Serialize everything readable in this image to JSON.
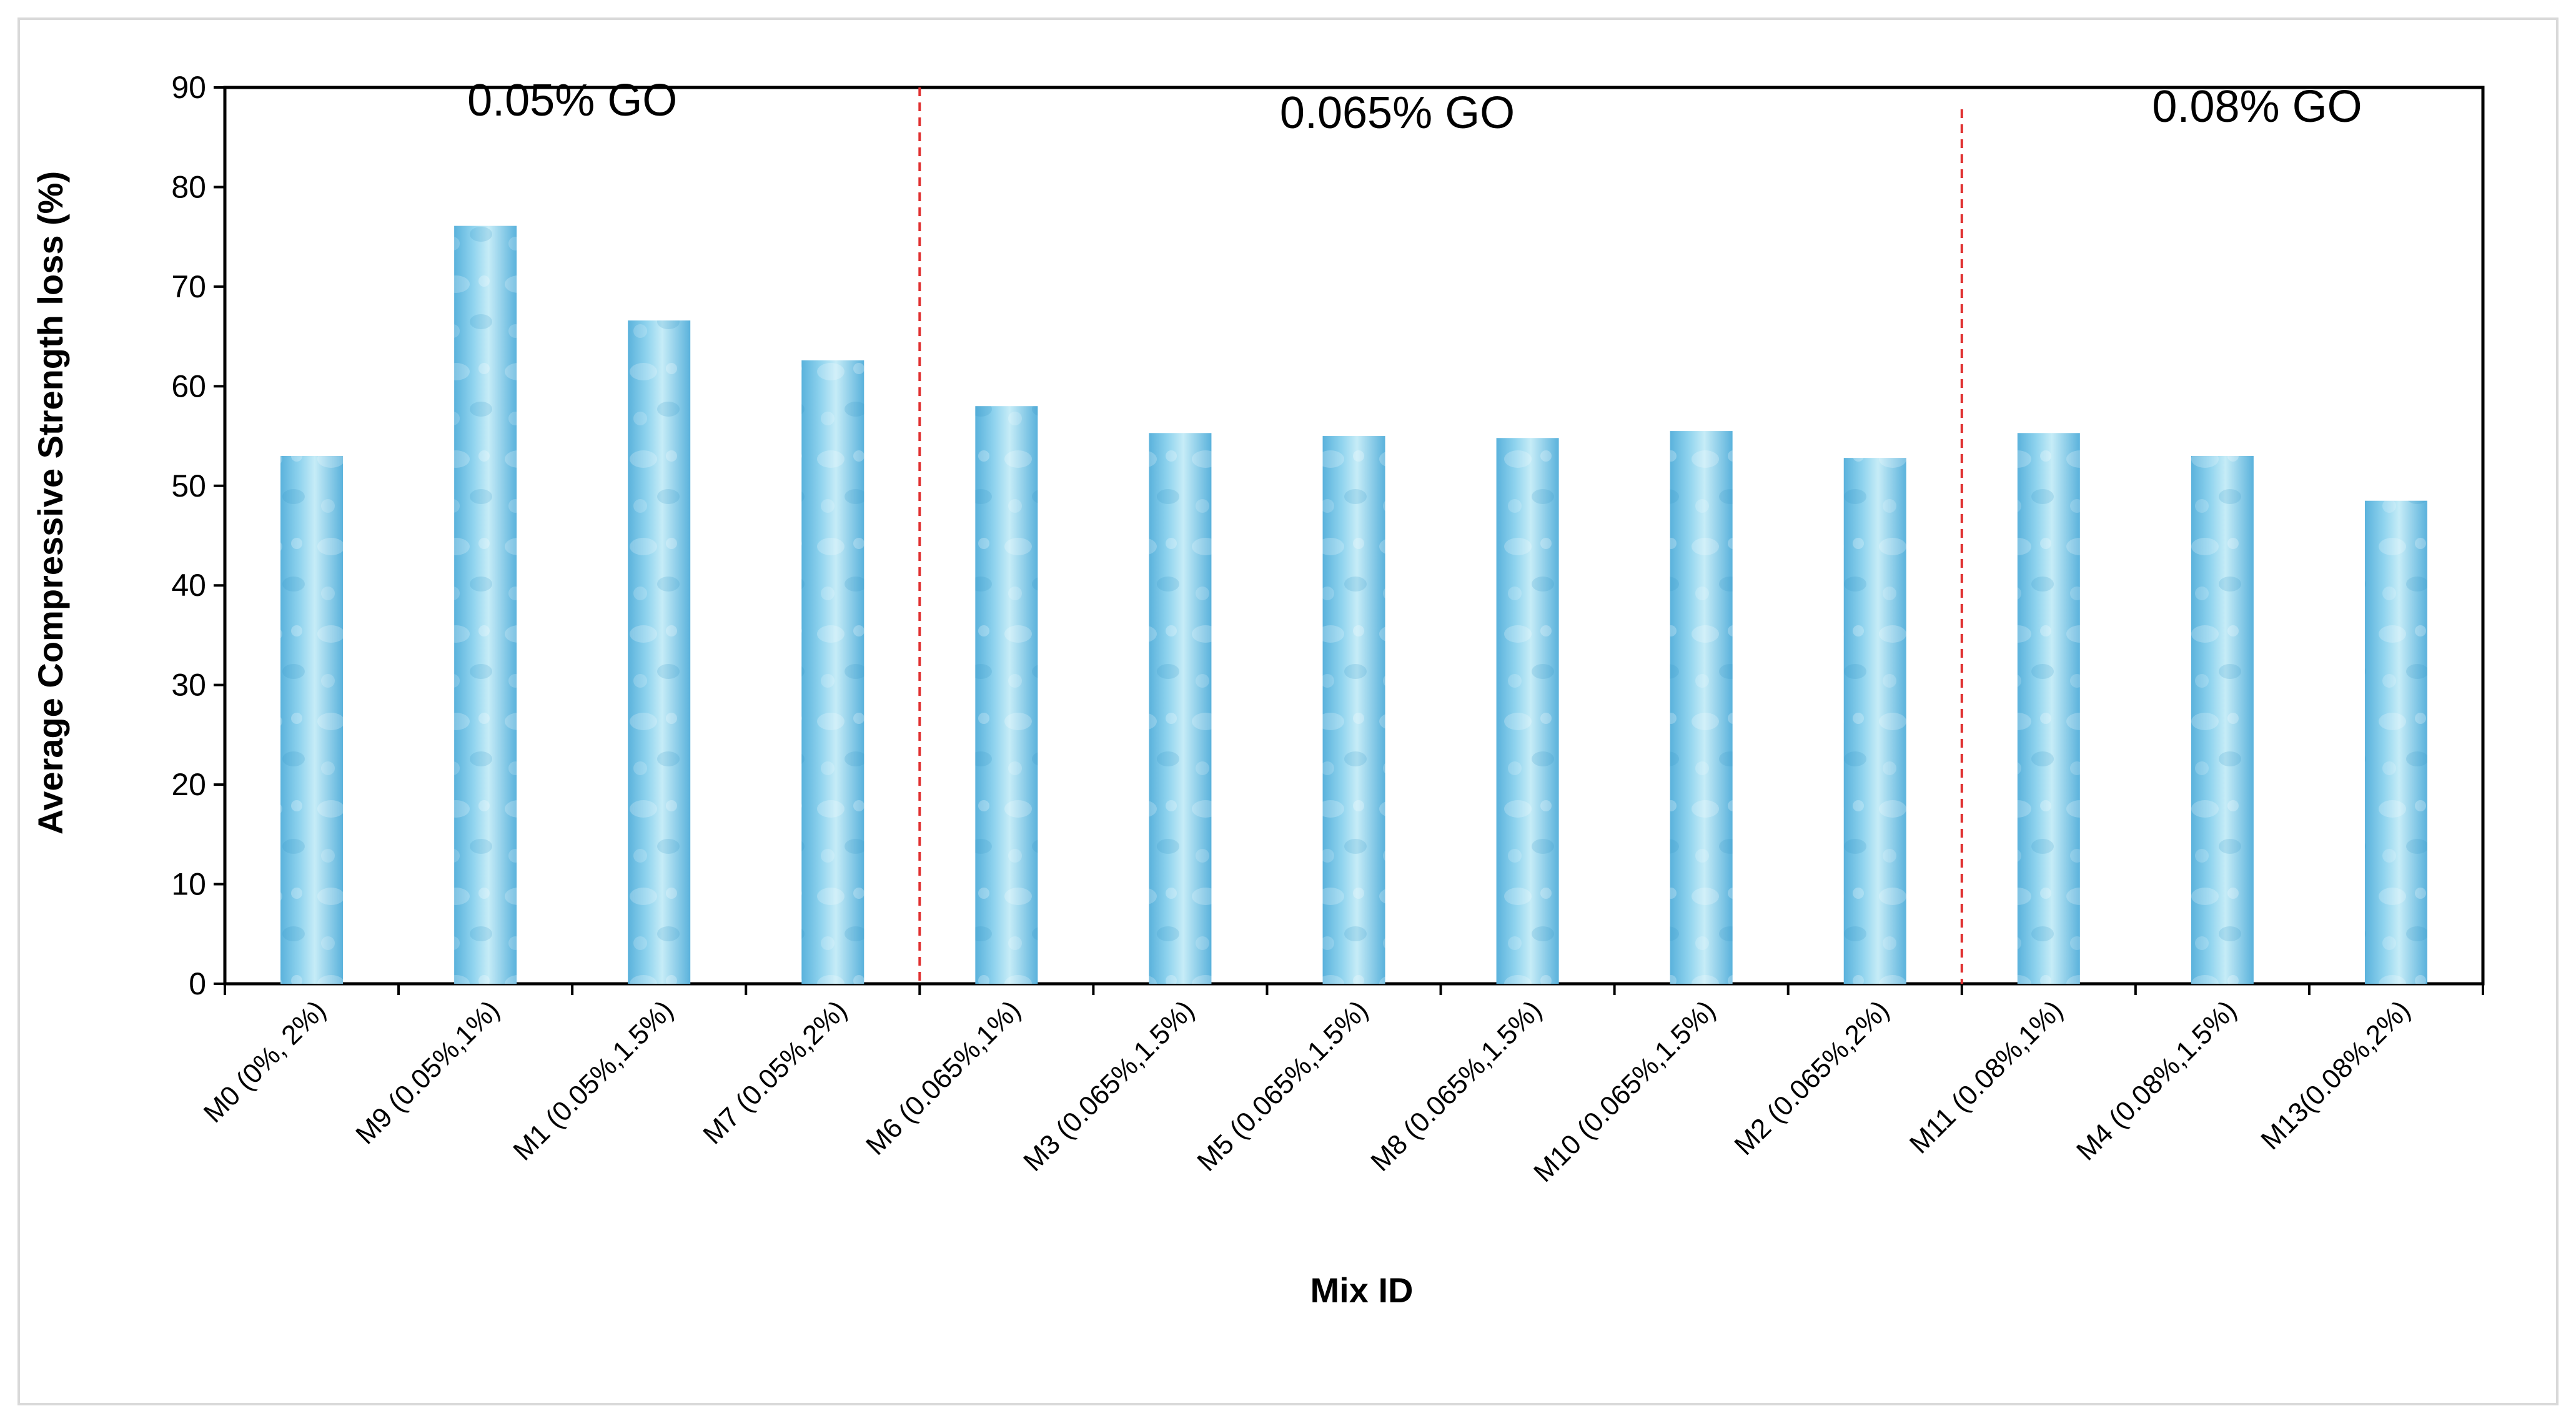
{
  "chart_data": {
    "type": "bar",
    "title": "",
    "xlabel": "Mix ID",
    "ylabel": "Average Compressive Strength loss (%)",
    "ylim": [
      0,
      90
    ],
    "yticks": [
      0,
      10,
      20,
      30,
      40,
      50,
      60,
      70,
      80,
      90
    ],
    "grid": false,
    "legend": "none",
    "categories": [
      "M0 (0%, 2%)",
      "M9 (0.05%,1%)",
      "M1 (0.05%,1.5%)",
      "M7 (0.05%,2%)",
      "M6 (0.065%,1%)",
      "M3 (0.065%,1.5%)",
      "M5 (0.065%,1.5%)",
      "M8 (0.065%,1.5%)",
      "M10 (0.065%,1.5%)",
      "M2 (0.065%,2%)",
      "M11 (0.08%,1%)",
      "M4 (0.08%,1.5%)",
      "M13(0.08%,2%)"
    ],
    "values": [
      53.0,
      76.1,
      66.6,
      62.6,
      58.0,
      55.3,
      55.0,
      54.8,
      55.5,
      52.8,
      55.3,
      53.0,
      48.5
    ],
    "annotations": [
      {
        "text": "0.05% GO",
        "x_category_center": 1.5
      },
      {
        "text": "0.065% GO",
        "x_category_center": 6.25
      },
      {
        "text": "0.08% GO",
        "x_category_center": 11.2
      }
    ],
    "dividers_after_category_index": [
      3,
      9
    ],
    "colors": {
      "bar_light": "#c6ecf7",
      "bar_mid": "#8fd3ee",
      "bar_dark": "#5ab2dc",
      "divider": "#e03030",
      "axis": "#000000",
      "frame": "#d9d9d9"
    }
  }
}
